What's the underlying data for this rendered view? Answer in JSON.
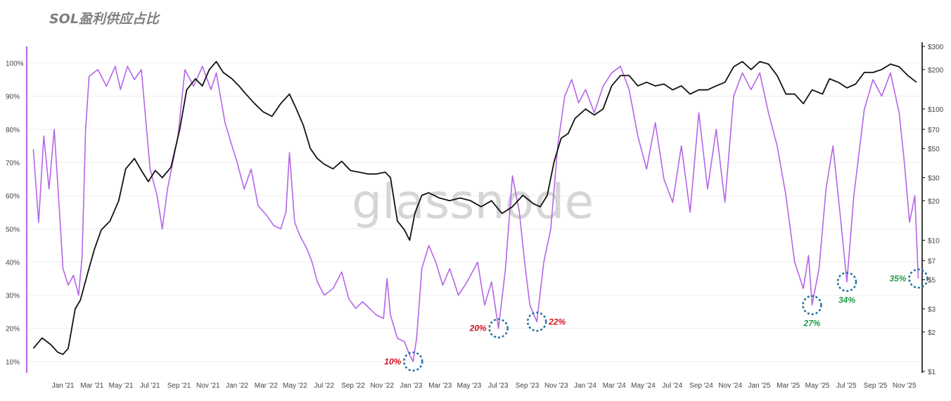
{
  "title": "SOL盈利供应占比",
  "watermark": "glassnode",
  "colors": {
    "supply": "#b565e8",
    "price": "#111111",
    "annotation_red": "#d0141f",
    "annotation_green": "#1f9e4a",
    "circle": "#1f6fa0"
  },
  "chart_data": {
    "type": "line",
    "title": "SOL盈利供应占比",
    "x_tick_labels": [
      "Jan '21",
      "Mar '21",
      "May '21",
      "Jul '21",
      "Sep '21",
      "Nov '21",
      "Jan '22",
      "Mar '22",
      "May '22",
      "Jul '22",
      "Sep '22",
      "Nov '22",
      "Jan '23",
      "Mar '23",
      "May '23",
      "Jul '23",
      "Sep '23",
      "Nov '23",
      "Jan '24",
      "Mar '24",
      "May '24",
      "Jul '24",
      "Sep '24",
      "Nov '24",
      "Jan '25",
      "Mar '25",
      "May '25",
      "Jul '25",
      "Sep '25",
      "Nov '25"
    ],
    "y_left_ticks": [
      "10%",
      "20%",
      "30%",
      "40%",
      "50%",
      "60%",
      "70%",
      "80%",
      "90%",
      "100%"
    ],
    "y_left_range": [
      0.07,
      1.05
    ],
    "y_right_ticks": [
      {
        "label": "$1",
        "value": 1
      },
      {
        "label": "$2",
        "value": 2
      },
      {
        "label": "$3",
        "value": 3
      },
      {
        "label": "$5",
        "value": 5
      },
      {
        "label": "$7",
        "value": 7
      },
      {
        "label": "$10",
        "value": 10
      },
      {
        "label": "$20",
        "value": 20
      },
      {
        "label": "$30",
        "value": 30
      },
      {
        "label": "$50",
        "value": 50
      },
      {
        "label": "$70",
        "value": 70
      },
      {
        "label": "$100",
        "value": 100
      },
      {
        "label": "$200",
        "value": 200
      },
      {
        "label": "$300",
        "value": 300
      }
    ],
    "y_right_scale": "log",
    "y_right_range": [
      1,
      300
    ],
    "x_range": [
      2020.8,
      2025.92
    ],
    "series": [
      {
        "axis": "left",
        "points": [
          [
            2020.83,
            0.74
          ],
          [
            2020.86,
            0.52
          ],
          [
            2020.89,
            0.78
          ],
          [
            2020.92,
            0.62
          ],
          [
            2020.95,
            0.8
          ],
          [
            2020.98,
            0.55
          ],
          [
            2021.0,
            0.38
          ],
          [
            2021.03,
            0.33
          ],
          [
            2021.06,
            0.36
          ],
          [
            2021.09,
            0.3
          ],
          [
            2021.11,
            0.42
          ],
          [
            2021.13,
            0.8
          ],
          [
            2021.15,
            0.96
          ],
          [
            2021.2,
            0.98
          ],
          [
            2021.25,
            0.93
          ],
          [
            2021.3,
            0.99
          ],
          [
            2021.33,
            0.92
          ],
          [
            2021.37,
            0.99
          ],
          [
            2021.41,
            0.95
          ],
          [
            2021.45,
            0.98
          ],
          [
            2021.48,
            0.8
          ],
          [
            2021.5,
            0.68
          ],
          [
            2021.54,
            0.6
          ],
          [
            2021.57,
            0.5
          ],
          [
            2021.6,
            0.62
          ],
          [
            2021.63,
            0.7
          ],
          [
            2021.66,
            0.78
          ],
          [
            2021.7,
            0.98
          ],
          [
            2021.75,
            0.93
          ],
          [
            2021.8,
            0.99
          ],
          [
            2021.85,
            0.92
          ],
          [
            2021.88,
            0.97
          ],
          [
            2021.93,
            0.82
          ],
          [
            2021.97,
            0.75
          ],
          [
            2022.0,
            0.7
          ],
          [
            2022.04,
            0.62
          ],
          [
            2022.08,
            0.68
          ],
          [
            2022.12,
            0.57
          ],
          [
            2022.17,
            0.54
          ],
          [
            2022.21,
            0.51
          ],
          [
            2022.25,
            0.5
          ],
          [
            2022.28,
            0.55
          ],
          [
            2022.3,
            0.73
          ],
          [
            2022.33,
            0.52
          ],
          [
            2022.36,
            0.48
          ],
          [
            2022.4,
            0.44
          ],
          [
            2022.43,
            0.4
          ],
          [
            2022.46,
            0.34
          ],
          [
            2022.5,
            0.3
          ],
          [
            2022.55,
            0.32
          ],
          [
            2022.6,
            0.37
          ],
          [
            2022.64,
            0.29
          ],
          [
            2022.68,
            0.26
          ],
          [
            2022.72,
            0.28
          ],
          [
            2022.76,
            0.26
          ],
          [
            2022.8,
            0.24
          ],
          [
            2022.84,
            0.23
          ],
          [
            2022.86,
            0.35
          ],
          [
            2022.88,
            0.24
          ],
          [
            2022.92,
            0.17
          ],
          [
            2022.96,
            0.16
          ],
          [
            2022.99,
            0.12
          ],
          [
            2023.01,
            0.1
          ],
          [
            2023.03,
            0.17
          ],
          [
            2023.06,
            0.38
          ],
          [
            2023.1,
            0.45
          ],
          [
            2023.14,
            0.4
          ],
          [
            2023.18,
            0.33
          ],
          [
            2023.22,
            0.38
          ],
          [
            2023.27,
            0.3
          ],
          [
            2023.32,
            0.34
          ],
          [
            2023.38,
            0.4
          ],
          [
            2023.42,
            0.27
          ],
          [
            2023.46,
            0.34
          ],
          [
            2023.5,
            0.2
          ],
          [
            2023.54,
            0.38
          ],
          [
            2023.58,
            0.66
          ],
          [
            2023.62,
            0.55
          ],
          [
            2023.65,
            0.4
          ],
          [
            2023.68,
            0.27
          ],
          [
            2023.72,
            0.22
          ],
          [
            2023.76,
            0.4
          ],
          [
            2023.8,
            0.5
          ],
          [
            2023.84,
            0.75
          ],
          [
            2023.88,
            0.9
          ],
          [
            2023.92,
            0.95
          ],
          [
            2023.96,
            0.88
          ],
          [
            2024.0,
            0.92
          ],
          [
            2024.05,
            0.85
          ],
          [
            2024.1,
            0.93
          ],
          [
            2024.15,
            0.97
          ],
          [
            2024.2,
            0.99
          ],
          [
            2024.25,
            0.92
          ],
          [
            2024.3,
            0.78
          ],
          [
            2024.35,
            0.68
          ],
          [
            2024.4,
            0.82
          ],
          [
            2024.45,
            0.65
          ],
          [
            2024.5,
            0.58
          ],
          [
            2024.55,
            0.75
          ],
          [
            2024.6,
            0.55
          ],
          [
            2024.65,
            0.85
          ],
          [
            2024.7,
            0.62
          ],
          [
            2024.75,
            0.8
          ],
          [
            2024.8,
            0.58
          ],
          [
            2024.85,
            0.9
          ],
          [
            2024.9,
            0.97
          ],
          [
            2024.95,
            0.92
          ],
          [
            2025.0,
            0.97
          ],
          [
            2025.05,
            0.85
          ],
          [
            2025.1,
            0.75
          ],
          [
            2025.15,
            0.6
          ],
          [
            2025.2,
            0.4
          ],
          [
            2025.25,
            0.32
          ],
          [
            2025.28,
            0.42
          ],
          [
            2025.3,
            0.27
          ],
          [
            2025.34,
            0.38
          ],
          [
            2025.38,
            0.62
          ],
          [
            2025.42,
            0.75
          ],
          [
            2025.46,
            0.55
          ],
          [
            2025.5,
            0.34
          ],
          [
            2025.54,
            0.6
          ],
          [
            2025.6,
            0.86
          ],
          [
            2025.65,
            0.95
          ],
          [
            2025.7,
            0.9
          ],
          [
            2025.75,
            0.97
          ],
          [
            2025.8,
            0.85
          ],
          [
            2025.83,
            0.7
          ],
          [
            2025.86,
            0.52
          ],
          [
            2025.89,
            0.6
          ],
          [
            2025.91,
            0.35
          ]
        ]
      },
      {
        "axis": "right",
        "points": [
          [
            2020.83,
            1.5
          ],
          [
            2020.88,
            1.8
          ],
          [
            2020.93,
            1.6
          ],
          [
            2020.97,
            1.4
          ],
          [
            2021.0,
            1.35
          ],
          [
            2021.03,
            1.5
          ],
          [
            2021.07,
            3.0
          ],
          [
            2021.1,
            3.5
          ],
          [
            2021.14,
            5.5
          ],
          [
            2021.18,
            8.5
          ],
          [
            2021.22,
            12
          ],
          [
            2021.27,
            14
          ],
          [
            2021.32,
            20
          ],
          [
            2021.36,
            35
          ],
          [
            2021.41,
            42
          ],
          [
            2021.45,
            34
          ],
          [
            2021.49,
            28
          ],
          [
            2021.53,
            34
          ],
          [
            2021.57,
            30
          ],
          [
            2021.62,
            36
          ],
          [
            2021.67,
            70
          ],
          [
            2021.71,
            140
          ],
          [
            2021.76,
            170
          ],
          [
            2021.8,
            150
          ],
          [
            2021.84,
            200
          ],
          [
            2021.88,
            230
          ],
          [
            2021.92,
            190
          ],
          [
            2021.97,
            170
          ],
          [
            2022.01,
            150
          ],
          [
            2022.05,
            130
          ],
          [
            2022.1,
            110
          ],
          [
            2022.15,
            95
          ],
          [
            2022.2,
            88
          ],
          [
            2022.25,
            110
          ],
          [
            2022.3,
            130
          ],
          [
            2022.34,
            100
          ],
          [
            2022.38,
            75
          ],
          [
            2022.42,
            50
          ],
          [
            2022.46,
            42
          ],
          [
            2022.5,
            38
          ],
          [
            2022.55,
            35
          ],
          [
            2022.6,
            40
          ],
          [
            2022.65,
            34
          ],
          [
            2022.7,
            33
          ],
          [
            2022.75,
            32
          ],
          [
            2022.8,
            32
          ],
          [
            2022.85,
            33
          ],
          [
            2022.88,
            30
          ],
          [
            2022.92,
            14
          ],
          [
            2022.96,
            12
          ],
          [
            2022.99,
            10
          ],
          [
            2023.02,
            16
          ],
          [
            2023.06,
            22
          ],
          [
            2023.1,
            23
          ],
          [
            2023.16,
            21
          ],
          [
            2023.22,
            20
          ],
          [
            2023.28,
            21
          ],
          [
            2023.34,
            20
          ],
          [
            2023.4,
            18
          ],
          [
            2023.46,
            20
          ],
          [
            2023.52,
            16
          ],
          [
            2023.58,
            18
          ],
          [
            2023.64,
            22
          ],
          [
            2023.7,
            19
          ],
          [
            2023.74,
            18
          ],
          [
            2023.78,
            22
          ],
          [
            2023.82,
            40
          ],
          [
            2023.86,
            60
          ],
          [
            2023.9,
            65
          ],
          [
            2023.94,
            85
          ],
          [
            2024.0,
            100
          ],
          [
            2024.05,
            90
          ],
          [
            2024.1,
            100
          ],
          [
            2024.15,
            150
          ],
          [
            2024.2,
            180
          ],
          [
            2024.25,
            180
          ],
          [
            2024.3,
            150
          ],
          [
            2024.35,
            160
          ],
          [
            2024.4,
            150
          ],
          [
            2024.45,
            155
          ],
          [
            2024.5,
            140
          ],
          [
            2024.55,
            150
          ],
          [
            2024.6,
            130
          ],
          [
            2024.65,
            140
          ],
          [
            2024.7,
            140
          ],
          [
            2024.75,
            150
          ],
          [
            2024.8,
            160
          ],
          [
            2024.85,
            210
          ],
          [
            2024.9,
            230
          ],
          [
            2024.95,
            200
          ],
          [
            2025.0,
            230
          ],
          [
            2025.05,
            220
          ],
          [
            2025.1,
            180
          ],
          [
            2025.15,
            130
          ],
          [
            2025.2,
            130
          ],
          [
            2025.25,
            110
          ],
          [
            2025.3,
            140
          ],
          [
            2025.36,
            130
          ],
          [
            2025.4,
            170
          ],
          [
            2025.45,
            160
          ],
          [
            2025.5,
            145
          ],
          [
            2025.55,
            155
          ],
          [
            2025.6,
            190
          ],
          [
            2025.65,
            190
          ],
          [
            2025.7,
            200
          ],
          [
            2025.75,
            220
          ],
          [
            2025.8,
            210
          ],
          [
            2025.85,
            180
          ],
          [
            2025.9,
            160
          ]
        ]
      }
    ],
    "annotations": [
      {
        "label": "10%",
        "x": 2023.01,
        "y": 0.1,
        "color": "red",
        "side": "left"
      },
      {
        "label": "20%",
        "x": 2023.5,
        "y": 0.2,
        "color": "red",
        "side": "left"
      },
      {
        "label": "22%",
        "x": 2023.72,
        "y": 0.22,
        "color": "red",
        "side": "right"
      },
      {
        "label": "27%",
        "x": 2025.3,
        "y": 0.27,
        "color": "green",
        "side": "below"
      },
      {
        "label": "34%",
        "x": 2025.5,
        "y": 0.34,
        "color": "green",
        "side": "below"
      },
      {
        "label": "35%",
        "x": 2025.91,
        "y": 0.35,
        "color": "green",
        "side": "left"
      }
    ]
  }
}
